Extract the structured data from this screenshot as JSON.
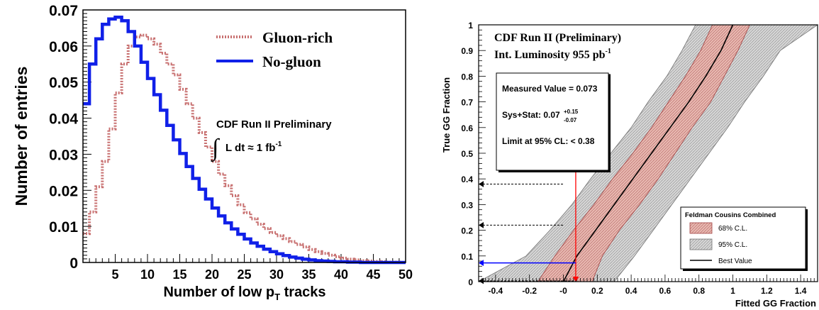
{
  "chart_data": [
    {
      "type": "line",
      "ylabel": "Number of entries",
      "xlabel_parts": {
        "main": "Number of low p",
        "sub": "T",
        "tail": " tracks"
      },
      "xlim": [
        0,
        50
      ],
      "ylim": [
        0,
        0.07
      ],
      "x_ticks": [
        "5",
        "10",
        "15",
        "20",
        "25",
        "30",
        "35",
        "40",
        "45",
        "50"
      ],
      "x_tick_values": [
        5,
        10,
        15,
        20,
        25,
        30,
        35,
        40,
        45,
        50
      ],
      "y_ticks": [
        "0",
        "0.01",
        "0.02",
        "0.03",
        "0.04",
        "0.05",
        "0.06",
        "0.07"
      ],
      "y_tick_values": [
        0,
        0.01,
        0.02,
        0.03,
        0.04,
        0.05,
        0.06,
        0.07
      ],
      "legend_position": "top-right",
      "legend": [
        "Gluon-rich",
        "No-gluon"
      ],
      "annotation": {
        "line1": "CDF Run II Preliminary",
        "integral": "∫",
        "line2": "L dt ≈ 1 fb",
        "line2_sup": "-1"
      },
      "series": [
        {
          "name": "Gluon-rich",
          "color": "#c87070",
          "style": "dotted",
          "x": [
            0,
            1,
            2,
            3,
            4,
            5,
            6,
            7,
            8,
            9,
            10,
            11,
            12,
            13,
            14,
            15,
            16,
            17,
            18,
            19,
            20,
            21,
            22,
            23,
            24,
            25,
            26,
            27,
            28,
            29,
            30,
            31,
            32,
            33,
            34,
            35,
            36,
            37,
            38,
            39,
            40,
            41,
            42,
            43,
            44,
            45,
            46,
            47,
            48,
            49,
            50
          ],
          "y": [
            0.008,
            0.014,
            0.021,
            0.028,
            0.037,
            0.047,
            0.055,
            0.06,
            0.0625,
            0.063,
            0.062,
            0.0605,
            0.058,
            0.055,
            0.052,
            0.048,
            0.044,
            0.04,
            0.036,
            0.032,
            0.028,
            0.0245,
            0.0213,
            0.0185,
            0.016,
            0.0138,
            0.0121,
            0.0106,
            0.0094,
            0.0083,
            0.0074,
            0.0066,
            0.0058,
            0.005,
            0.0043,
            0.0036,
            0.003,
            0.0025,
            0.002,
            0.0016,
            0.0012,
            0.0009,
            0.0007,
            0.0005,
            0.0004,
            0.0003,
            0.0002,
            0.0001,
            0.0001,
            0.0,
            0.0
          ]
        },
        {
          "name": "No-gluon",
          "color": "#1020e8",
          "style": "solid",
          "x": [
            0,
            1,
            2,
            3,
            4,
            5,
            6,
            7,
            8,
            9,
            10,
            11,
            12,
            13,
            14,
            15,
            16,
            17,
            18,
            19,
            20,
            21,
            22,
            23,
            24,
            25,
            26,
            27,
            28,
            29,
            30,
            31,
            32,
            33,
            34,
            35,
            36,
            37,
            38,
            39,
            40,
            41,
            42,
            43,
            44,
            45,
            46,
            47,
            48,
            49,
            50
          ],
          "y": [
            0.044,
            0.055,
            0.062,
            0.066,
            0.0675,
            0.068,
            0.067,
            0.064,
            0.06,
            0.0555,
            0.051,
            0.0465,
            0.0422,
            0.038,
            0.034,
            0.0302,
            0.0266,
            0.0233,
            0.0203,
            0.0176,
            0.0151,
            0.0129,
            0.011,
            0.0093,
            0.0078,
            0.0065,
            0.0054,
            0.0045,
            0.0037,
            0.003,
            0.0024,
            0.0019,
            0.0015,
            0.0012,
            0.0009,
            0.0007,
            0.0005,
            0.0004,
            0.0003,
            0.0002,
            0.0002,
            0.0001,
            0.0001,
            0.0,
            0.0,
            0.0,
            0.0,
            0.0,
            0.0,
            0.0,
            0.0
          ]
        }
      ]
    },
    {
      "type": "area",
      "xlabel": "Fitted GG Fraction",
      "ylabel": "True GG Fraction",
      "xlim": [
        -0.5,
        1.5
      ],
      "ylim": [
        0,
        1
      ],
      "x_ticks": [
        "-0.4",
        "-0.2",
        "-0",
        "0.2",
        "0.4",
        "0.6",
        "0.8",
        "1",
        "1.2",
        "1.4"
      ],
      "x_tick_values": [
        -0.4,
        -0.2,
        0,
        0.2,
        0.4,
        0.6,
        0.8,
        1.0,
        1.2,
        1.4
      ],
      "y_ticks": [
        "0",
        "0.1",
        "0.2",
        "0.3",
        "0.4",
        "0.5",
        "0.6",
        "0.7",
        "0.8",
        "0.9",
        "1"
      ],
      "y_tick_values": [
        0,
        0.1,
        0.2,
        0.3,
        0.4,
        0.5,
        0.6,
        0.7,
        0.8,
        0.9,
        1.0
      ],
      "title_line1": "CDF Run II (Preliminary)",
      "title_line2": "Int. Luminosity 955 pb",
      "title_line2_sup": "-1",
      "infobox": {
        "measured": "Measured Value = 0.073",
        "sys_prefix": "Sys+Stat: 0.07",
        "sys_plus": "+0.15",
        "sys_minus": "-0.07",
        "limit": "Limit at 95% CL: < 0.38"
      },
      "legend_position": "bottom-right",
      "legend_title": "Feldman Cousins Combined",
      "legend": [
        "68% C.L.",
        "95% C.L.",
        "Best Value"
      ],
      "colors": {
        "band68": "#e6b3ad",
        "band68_edge": "#a04040",
        "band95": "#d0d0d0",
        "band95_edge": "#707070",
        "best": "#000000",
        "measured": "#ff0000",
        "measured_arrow": "#0000ff"
      },
      "measured_value": 0.073,
      "limit_95": 0.38,
      "lower_68": 0.22,
      "true_y": [
        0.0,
        0.1,
        0.2,
        0.3,
        0.4,
        0.5,
        0.6,
        0.7,
        0.8,
        0.9,
        1.0
      ],
      "best_value_x": [
        0.0,
        0.08,
        0.19,
        0.3,
        0.41,
        0.52,
        0.63,
        0.74,
        0.84,
        0.93,
        1.0
      ],
      "band68_low_x": [
        -0.15,
        -0.05,
        0.06,
        0.18,
        0.29,
        0.41,
        0.52,
        0.62,
        0.72,
        0.81,
        0.88
      ],
      "band68_high_x": [
        0.17,
        0.23,
        0.33,
        0.45,
        0.56,
        0.66,
        0.76,
        0.87,
        0.95,
        1.03,
        1.1
      ],
      "band95_low_x": [
        -0.5,
        -0.22,
        -0.08,
        0.05,
        0.16,
        0.28,
        0.4,
        0.5,
        0.61,
        0.7,
        0.78
      ],
      "band95_high_x": [
        0.3,
        0.42,
        0.53,
        0.64,
        0.75,
        0.86,
        0.97,
        1.07,
        1.18,
        1.28,
        1.5
      ]
    }
  ]
}
